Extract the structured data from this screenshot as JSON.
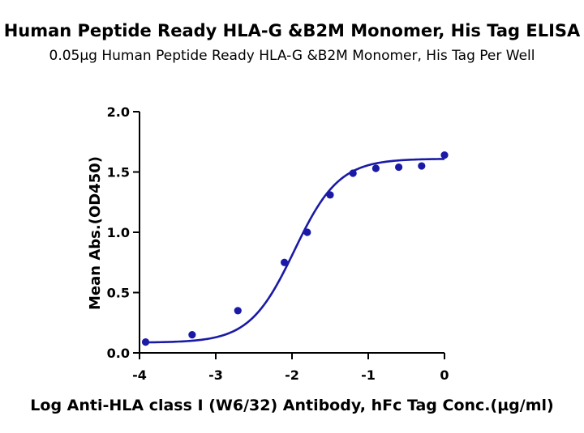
{
  "chart_data": {
    "type": "scatter",
    "title": "Human Peptide Ready HLA-G &B2M Monomer, His Tag ELISA",
    "subtitle": "0.05µg Human Peptide Ready HLA-G &B2M Monomer, His Tag Per Well",
    "xlabel": "Log Anti-HLA class I (W6/32) Antibody, hFc Tag Conc.(µg/ml)",
    "ylabel": "Mean Abs.(OD450)",
    "xlim": [
      -4,
      0
    ],
    "ylim": [
      0,
      2.0
    ],
    "xticks": [
      -4,
      -3,
      -2,
      -1,
      0
    ],
    "xtick_labels": [
      "-4",
      "-3",
      "-2",
      "-1",
      "0"
    ],
    "yticks": [
      0,
      0.5,
      1.0,
      1.5,
      2.0
    ],
    "ytick_labels": [
      "0.0",
      "0.5",
      "1.0",
      "1.5",
      "2.0"
    ],
    "grid": false,
    "color": "#1a1aa6",
    "points": [
      {
        "x": -3.92,
        "y": 0.09
      },
      {
        "x": -3.31,
        "y": 0.15
      },
      {
        "x": -2.71,
        "y": 0.35
      },
      {
        "x": -2.1,
        "y": 0.75
      },
      {
        "x": -1.8,
        "y": 1.0
      },
      {
        "x": -1.5,
        "y": 1.31
      },
      {
        "x": -1.2,
        "y": 1.49
      },
      {
        "x": -0.9,
        "y": 1.53
      },
      {
        "x": -0.6,
        "y": 1.54
      },
      {
        "x": -0.3,
        "y": 1.55
      },
      {
        "x": 0.0,
        "y": 1.64
      }
    ],
    "fit_curve": {
      "model": "four-parameter logistic",
      "bottom": 0.085,
      "top": 1.61,
      "log_ec50": -1.97,
      "hill_slope": 1.48
    }
  }
}
